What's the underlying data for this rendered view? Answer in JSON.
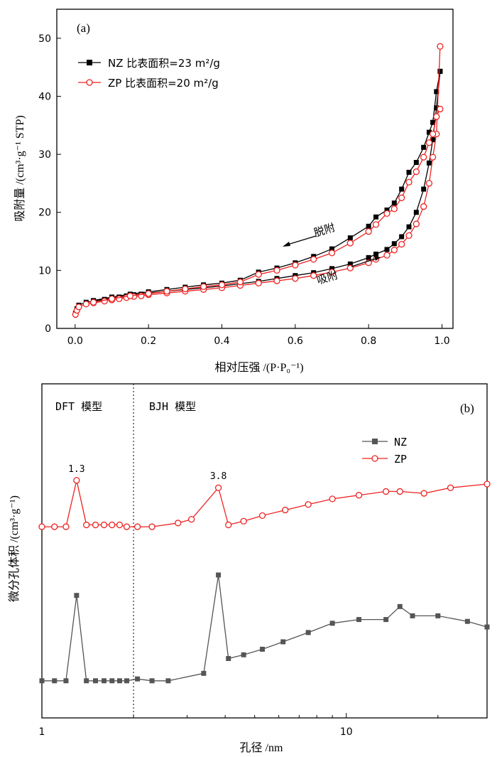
{
  "chart_data": [
    {
      "type": "line",
      "panel_label": "(a)",
      "xlabel": "相对压强 /(P·P₀⁻¹)",
      "ylabel": "吸附量 /(cm³·g⁻¹ STP)",
      "xlim": [
        -0.05,
        1.03
      ],
      "ylim": [
        0,
        55
      ],
      "xticks": [
        "0.0",
        "0.2",
        "0.4",
        "0.6",
        "0.8",
        "1.0"
      ],
      "yticks": [
        "0",
        "10",
        "20",
        "30",
        "40",
        "50"
      ],
      "legend": {
        "position": "top-left",
        "entries": [
          {
            "name": "NZ",
            "text": "NZ  比表面积=23 m²/g"
          },
          {
            "name": "ZP",
            "text": "ZP  比表面积=20 m²/g"
          }
        ]
      },
      "annotations": {
        "desorption": "脱附",
        "adsorption": "吸附"
      },
      "series": [
        {
          "name": "NZ-adsorption",
          "color": "#000000",
          "marker": "square-filled",
          "x": [
            0.001,
            0.005,
            0.01,
            0.03,
            0.05,
            0.08,
            0.1,
            0.12,
            0.14,
            0.16,
            0.18,
            0.2,
            0.25,
            0.3,
            0.35,
            0.4,
            0.45,
            0.5,
            0.55,
            0.6,
            0.65,
            0.7,
            0.75,
            0.8,
            0.82,
            0.85,
            0.87,
            0.89,
            0.91,
            0.93,
            0.95,
            0.965,
            0.975,
            0.985,
            0.995
          ],
          "y": [
            2.6,
            3.4,
            4.0,
            4.5,
            4.7,
            5.0,
            5.2,
            5.4,
            5.6,
            5.8,
            5.9,
            6.1,
            6.4,
            6.7,
            7.0,
            7.3,
            7.7,
            8.1,
            8.6,
            9.1,
            9.6,
            10.3,
            11.1,
            12.2,
            12.8,
            13.6,
            14.6,
            15.8,
            17.5,
            20.0,
            24.0,
            28.5,
            32.5,
            38.0,
            44.3
          ]
        },
        {
          "name": "NZ-desorption",
          "color": "#000000",
          "marker": "square-filled",
          "x": [
            0.995,
            0.985,
            0.975,
            0.965,
            0.95,
            0.93,
            0.91,
            0.89,
            0.87,
            0.85,
            0.82,
            0.8,
            0.75,
            0.7,
            0.65,
            0.6,
            0.55,
            0.5,
            0.45,
            0.4,
            0.35,
            0.3,
            0.25,
            0.2,
            0.15,
            0.1,
            0.05
          ],
          "y": [
            44.3,
            40.8,
            35.5,
            33.8,
            31.2,
            28.6,
            26.9,
            24.0,
            21.6,
            20.4,
            19.2,
            17.6,
            15.6,
            13.7,
            12.4,
            11.3,
            10.4,
            9.7,
            8.3,
            7.8,
            7.5,
            7.1,
            6.7,
            6.3,
            5.9,
            5.4,
            4.8
          ]
        },
        {
          "name": "ZP-adsorption",
          "color": "#ee2222",
          "marker": "circle-open",
          "x": [
            0.001,
            0.005,
            0.01,
            0.03,
            0.05,
            0.08,
            0.1,
            0.12,
            0.14,
            0.16,
            0.18,
            0.2,
            0.25,
            0.3,
            0.35,
            0.4,
            0.45,
            0.5,
            0.55,
            0.6,
            0.65,
            0.7,
            0.75,
            0.8,
            0.82,
            0.85,
            0.87,
            0.89,
            0.91,
            0.93,
            0.95,
            0.965,
            0.975,
            0.985,
            0.995
          ],
          "y": [
            2.4,
            3.1,
            3.7,
            4.2,
            4.4,
            4.7,
            4.9,
            5.1,
            5.3,
            5.5,
            5.6,
            5.8,
            6.1,
            6.4,
            6.7,
            7.0,
            7.4,
            7.8,
            8.2,
            8.6,
            9.1,
            9.7,
            10.4,
            11.3,
            11.9,
            12.6,
            13.5,
            14.5,
            16.0,
            18.0,
            21.0,
            25.0,
            29.5,
            33.5,
            48.6
          ]
        },
        {
          "name": "ZP-desorption",
          "color": "#ee2222",
          "marker": "circle-open",
          "x": [
            0.995,
            0.985,
            0.975,
            0.965,
            0.95,
            0.93,
            0.91,
            0.89,
            0.87,
            0.85,
            0.82,
            0.8,
            0.75,
            0.7,
            0.65,
            0.6,
            0.55,
            0.5,
            0.45,
            0.4,
            0.35,
            0.3,
            0.25,
            0.2,
            0.15,
            0.1,
            0.05
          ],
          "y": [
            37.8,
            36.5,
            33.5,
            32.0,
            29.5,
            27.0,
            25.2,
            22.5,
            20.6,
            19.8,
            17.9,
            16.7,
            14.7,
            13.0,
            11.9,
            10.9,
            10.0,
            9.3,
            8.0,
            7.5,
            7.2,
            6.8,
            6.4,
            6.0,
            5.6,
            5.1,
            4.5
          ]
        }
      ]
    },
    {
      "type": "line",
      "panel_label": "(b)",
      "xscale": "log",
      "xlabel": "孔径 /nm",
      "ylabel": "微分孔体积 /(cm³·g⁻¹)",
      "xlim": [
        1,
        29
      ],
      "ylim": [
        -0.2,
        1.6
      ],
      "xticks": [
        "1",
        "10"
      ],
      "yticks": [],
      "divider_x": 2.0,
      "region_labels": {
        "left": "DFT 模型",
        "right": "BJH 模型"
      },
      "legend": {
        "position": "top-right",
        "entries": [
          {
            "name": "NZ"
          },
          {
            "name": "ZP"
          }
        ]
      },
      "peak_labels": [
        {
          "x": 1.3,
          "text": "1.3"
        },
        {
          "x": 3.8,
          "text": "3.8"
        }
      ],
      "series": [
        {
          "name": "NZ",
          "color": "#555555",
          "marker": "square-filled",
          "x": [
            1.0,
            1.1,
            1.2,
            1.3,
            1.4,
            1.5,
            1.6,
            1.7,
            1.8,
            1.9,
            2.06,
            2.3,
            2.6,
            3.4,
            3.8,
            4.1,
            4.6,
            5.3,
            6.2,
            7.5,
            9.0,
            11.0,
            13.5,
            15.0,
            16.5,
            20.0,
            25.0,
            29.0
          ],
          "y": [
            0.0,
            0.0,
            0.0,
            0.46,
            0.0,
            0.0,
            0.0,
            0.0,
            0.0,
            0.0,
            0.01,
            0.0,
            0.0,
            0.04,
            0.57,
            0.12,
            0.14,
            0.17,
            0.21,
            0.26,
            0.31,
            0.33,
            0.33,
            0.4,
            0.35,
            0.35,
            0.32,
            0.29
          ]
        },
        {
          "name": "ZP",
          "color": "#ee2222",
          "marker": "circle-open",
          "x": [
            1.0,
            1.1,
            1.2,
            1.3,
            1.4,
            1.5,
            1.6,
            1.7,
            1.8,
            1.9,
            2.06,
            2.3,
            2.8,
            3.1,
            3.8,
            4.1,
            4.6,
            5.3,
            6.3,
            7.5,
            9.0,
            11.0,
            13.5,
            15.0,
            18.0,
            22.0,
            29.0
          ],
          "y": [
            0.83,
            0.83,
            0.83,
            1.08,
            0.84,
            0.84,
            0.84,
            0.84,
            0.84,
            0.83,
            0.83,
            0.83,
            0.85,
            0.87,
            1.04,
            0.84,
            0.86,
            0.89,
            0.92,
            0.95,
            0.98,
            1.0,
            1.02,
            1.02,
            1.01,
            1.04,
            1.06
          ]
        }
      ]
    }
  ]
}
